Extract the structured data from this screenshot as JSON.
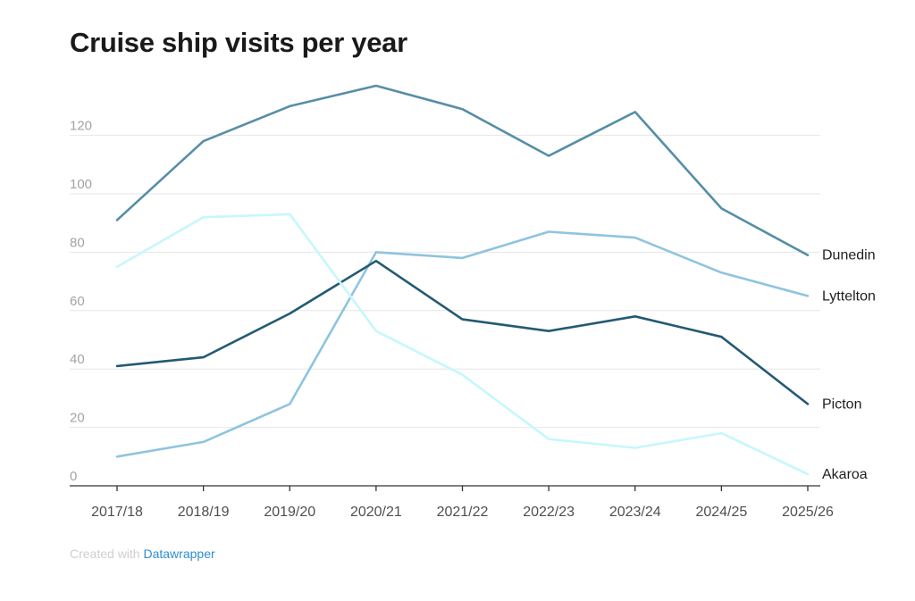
{
  "title": "Cruise ship visits per year",
  "footer": {
    "prefix": "Created with",
    "brand": "Datawrapper"
  },
  "chart_data": {
    "type": "line",
    "title": "Cruise ship visits per year",
    "xlabel": "",
    "ylabel": "",
    "categories": [
      "2017/18",
      "2018/19",
      "2019/20",
      "2020/21",
      "2021/22",
      "2022/23",
      "2023/24",
      "2024/25",
      "2025/26"
    ],
    "yticks": [
      0,
      20,
      40,
      60,
      80,
      100,
      120
    ],
    "ylim": [
      0,
      140
    ],
    "grid": true,
    "legend": "direct labels at right end of lines",
    "series": [
      {
        "name": "Dunedin",
        "color": "#568ea6",
        "values": [
          91,
          118,
          130,
          137,
          129,
          113,
          128,
          95,
          79
        ]
      },
      {
        "name": "Lyttelton",
        "color": "#8fc4df",
        "values": [
          10,
          15,
          28,
          80,
          78,
          87,
          85,
          73,
          65
        ]
      },
      {
        "name": "Picton",
        "color": "#235a73",
        "values": [
          41,
          44,
          59,
          77,
          57,
          53,
          58,
          51,
          28
        ]
      },
      {
        "name": "Akaroa",
        "color": "#c6f7fc",
        "values": [
          75,
          92,
          93,
          53,
          38,
          16,
          13,
          18,
          4
        ]
      }
    ]
  }
}
